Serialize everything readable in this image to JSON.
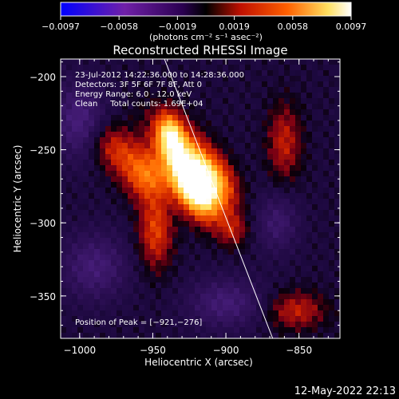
{
  "chart_data": {
    "type": "heatmap",
    "title": "Reconstructed RHESSI Image",
    "xlabel": "Heliocentric X (arcsec)",
    "ylabel": "Heliocentric Y (arcsec)",
    "xlim": [
      -1013,
      -822
    ],
    "ylim": [
      -379,
      -188
    ],
    "xticks": [
      -1000,
      -950,
      -900,
      -850
    ],
    "yticks": [
      -200,
      -250,
      -300,
      -350
    ],
    "xtick_labels": [
      "−1000",
      "−950",
      "−900",
      "−850"
    ],
    "ytick_labels": [
      "−200",
      "−250",
      "−300",
      "−350"
    ],
    "colorbar": {
      "min": -0.0097,
      "max": 0.0097,
      "ticks": [
        -0.0097,
        -0.0058,
        -0.0019,
        0.0019,
        0.0058,
        0.0097
      ],
      "tick_labels": [
        "−0.0097",
        "−0.0058",
        "−0.0019",
        "0.0019",
        "0.0058",
        "0.0097"
      ],
      "unit_label": "(photons cm⁻² s⁻¹ asec⁻²)",
      "colors": [
        "#0000ff",
        "#7020a8",
        "#2a0050",
        "#000000",
        "#c01000",
        "#ff6000",
        "#ffe060",
        "#ffffff"
      ]
    },
    "info_lines": [
      "23-Jul-2012 14:22:36.000 to 14:28:36.000",
      "Detectors: 3F 5F 6F 7F 8F, Att 0",
      "Energy Range: 6.0 - 12.0 keV",
      "Clean     Total counts: 1.69E+04"
    ],
    "peak_label": "Position of Peak = [−921,−276]",
    "peak": {
      "x": -921,
      "y": -276
    },
    "limb_line": {
      "x": [
        -942,
        -868
      ],
      "y": [
        -188,
        -379
      ]
    },
    "blobs": [
      {
        "x": -921,
        "y": -276,
        "sx": 9,
        "sy": 16,
        "angle": 30,
        "amp": 1.0
      },
      {
        "x": -927,
        "y": -257,
        "sx": 11,
        "sy": 22,
        "angle": 35,
        "amp": 0.65
      },
      {
        "x": -938,
        "y": -240,
        "sx": 6,
        "sy": 10,
        "angle": 10,
        "amp": 0.6
      },
      {
        "x": -955,
        "y": -268,
        "sx": 10,
        "sy": 12,
        "angle": 20,
        "amp": 0.45
      },
      {
        "x": -975,
        "y": -250,
        "sx": 10,
        "sy": 14,
        "angle": 45,
        "amp": 0.35
      },
      {
        "x": -948,
        "y": -305,
        "sx": 8,
        "sy": 18,
        "angle": 0,
        "amp": 0.4
      },
      {
        "x": -905,
        "y": -270,
        "sx": 8,
        "sy": 14,
        "angle": 30,
        "amp": 0.35
      },
      {
        "x": -895,
        "y": -305,
        "sx": 7,
        "sy": 8,
        "angle": 0,
        "amp": 0.25
      },
      {
        "x": -860,
        "y": -245,
        "sx": 8,
        "sy": 18,
        "angle": 0,
        "amp": 0.3
      },
      {
        "x": -852,
        "y": -360,
        "sx": 14,
        "sy": 9,
        "angle": 0,
        "amp": 0.3
      },
      {
        "x": -1000,
        "y": -230,
        "sx": 12,
        "sy": 18,
        "angle": 0,
        "amp": -0.35
      },
      {
        "x": -990,
        "y": -330,
        "sx": 16,
        "sy": 16,
        "angle": 0,
        "amp": -0.3
      },
      {
        "x": -900,
        "y": -355,
        "sx": 18,
        "sy": 12,
        "angle": 0,
        "amp": -0.3
      },
      {
        "x": -865,
        "y": -300,
        "sx": 10,
        "sy": 14,
        "angle": 0,
        "amp": -0.25
      }
    ]
  },
  "footer": {
    "timestamp": "12-May-2022 22:13"
  }
}
